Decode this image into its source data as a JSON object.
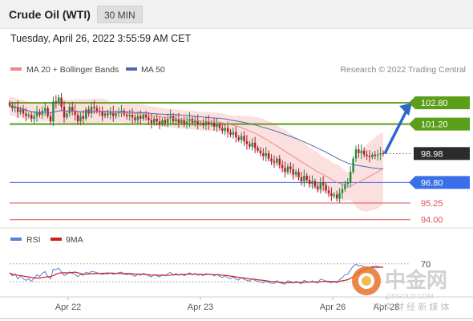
{
  "header": {
    "title": "Crude Oil (WTI)",
    "timeframe": "30 MIN"
  },
  "timestamp": "Tuesday, April 26, 2022 3:55:59 AM CET",
  "legend": {
    "ma20_bollinger": "MA 20 + Bollinger Bands",
    "ma50": "MA 50",
    "copyright": "Research © 2022 Trading Central",
    "rsi": "RSI",
    "ma9": "9MA"
  },
  "colors": {
    "green": "#5a9e1a",
    "blue": "#3a6ee8",
    "red": "#d9534f",
    "dark": "#2b2b2b",
    "bollinger_fill": "#fbd5d5",
    "ma20": "#e88a8a",
    "ma50": "#5468a8",
    "bull_candle": "#1e8a3a",
    "bear_candle": "#a8202a",
    "rsi_line": "#5b7fd6",
    "rsi_ma": "#cc2020"
  },
  "chart_data": [
    {
      "type": "candlestick",
      "title": "Crude Oil (WTI)",
      "timeframe": "30 MIN",
      "x_labels": [
        "Apr 22",
        "Apr 23",
        "Apr 26",
        "Apr 28"
      ],
      "ylim": [
        93.5,
        104.5
      ],
      "levels": [
        {
          "value": 102.8,
          "label": "102.80",
          "color": "green",
          "role": "target"
        },
        {
          "value": 101.2,
          "label": "101.20",
          "color": "green",
          "role": "resistance"
        },
        {
          "value": 98.98,
          "label": "98.98",
          "color": "dark",
          "role": "last price"
        },
        {
          "value": 96.8,
          "label": "96.80",
          "color": "blue",
          "role": "pivot"
        },
        {
          "value": 95.25,
          "label": "95.25",
          "color": "red",
          "role": "support"
        },
        {
          "value": 94.0,
          "label": "94.00",
          "color": "red",
          "role": "support"
        }
      ],
      "closes": [
        102.6,
        102.4,
        102.5,
        102.1,
        102.3,
        102.0,
        101.8,
        101.9,
        101.6,
        101.8,
        102.1,
        101.9,
        102.2,
        102.4,
        101.8,
        101.4,
        102.9,
        102.8,
        103.2,
        102.5,
        101.7,
        102.0,
        102.5,
        102.2,
        101.9,
        101.4,
        101.8,
        101.6,
        102.3,
        102.0,
        102.5,
        102.4,
        102.2,
        102.1,
        101.8,
        102.0,
        101.9,
        102.1,
        101.8,
        102.0,
        102.1,
        102.2,
        101.9,
        101.8,
        101.9,
        101.7,
        101.5,
        101.8,
        101.6,
        101.9,
        101.7,
        101.5,
        101.3,
        101.6,
        101.4,
        101.2,
        101.5,
        101.3,
        101.6,
        101.8,
        101.4,
        101.6,
        101.3,
        101.5,
        101.2,
        101.4,
        101.6,
        101.3,
        101.5,
        101.2,
        101.3,
        101.1,
        101.4,
        101.2,
        101.3,
        101.0,
        101.2,
        100.9,
        100.7,
        100.9,
        100.6,
        100.4,
        100.6,
        100.2,
        100.0,
        100.3,
        99.9,
        99.7,
        99.5,
        99.8,
        99.4,
        99.2,
        99.0,
        98.8,
        99.0,
        98.6,
        98.4,
        98.3,
        98.6,
        98.1,
        97.9,
        97.6,
        98.0,
        97.8,
        97.4,
        97.6,
        97.2,
        96.9,
        97.3,
        97.0,
        96.7,
        96.9,
        96.5,
        96.3,
        96.8,
        96.6,
        96.2,
        96.0,
        95.8,
        95.9,
        95.6,
        96.0,
        96.3,
        96.7,
        96.8,
        97.6,
        98.6,
        99.3,
        99.0,
        99.2,
        98.9,
        98.8,
        98.7,
        98.9,
        98.8,
        98.9,
        99.0,
        98.98
      ],
      "rsi_ylabel": "70"
    }
  ],
  "watermark": {
    "brand_cn": "中金网",
    "brand_en": "CNGOLD.COM",
    "slogan_cn": "中 文 财 经 新 媒 体"
  }
}
